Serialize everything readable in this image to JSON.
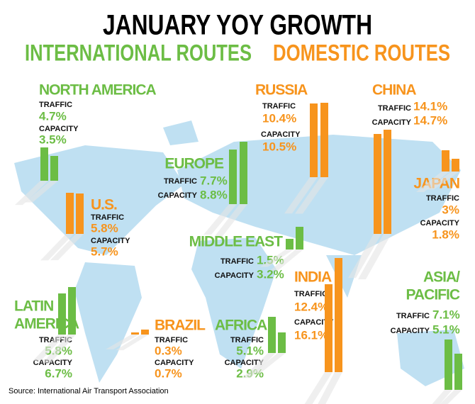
{
  "title": "JANUARY YOY GROWTH",
  "legend": {
    "international": {
      "text": "INTERNATIONAL ROUTES",
      "color": "#6cbd45"
    },
    "domestic": {
      "text": "DOMESTIC ROUTES",
      "color": "#f7941d"
    }
  },
  "metrics": {
    "traffic": "TRAFFIC",
    "capacity": "CAPACITY"
  },
  "regions": [
    {
      "name": [
        "NORTH AMERICA"
      ],
      "group": "international",
      "traffic": 4.7,
      "traffic_label": "4.7%",
      "capacity": 3.5,
      "capacity_label": "3.5%"
    },
    {
      "name": [
        "U.S."
      ],
      "group": "domestic",
      "traffic": 5.8,
      "traffic_label": "5.8%",
      "capacity": 5.7,
      "capacity_label": "5.7%"
    },
    {
      "name": [
        "EUROPE"
      ],
      "group": "international",
      "traffic": 7.7,
      "traffic_label": "7.7%",
      "capacity": 8.8,
      "capacity_label": "8.8%"
    },
    {
      "name": [
        "RUSSIA"
      ],
      "group": "domestic",
      "traffic": 10.4,
      "traffic_label": "10.4%",
      "capacity": 10.5,
      "capacity_label": "10.5%"
    },
    {
      "name": [
        "CHINA"
      ],
      "group": "domestic",
      "traffic": 14.1,
      "traffic_label": "14.1%",
      "capacity": 14.7,
      "capacity_label": "14.7%"
    },
    {
      "name": [
        "JAPAN"
      ],
      "group": "domestic",
      "traffic": 3,
      "traffic_label": "3%",
      "capacity": 1.8,
      "capacity_label": "1.8%"
    },
    {
      "name": [
        "MIDDLE EAST"
      ],
      "group": "international",
      "traffic": 1.5,
      "traffic_label": "1.5%",
      "capacity": 3.2,
      "capacity_label": "3.2%"
    },
    {
      "name": [
        "INDIA"
      ],
      "group": "domestic",
      "traffic": 12.4,
      "traffic_label": "12.4%",
      "capacity": 16.1,
      "capacity_label": "16.1%"
    },
    {
      "name": [
        "ASIA/",
        "PACIFIC"
      ],
      "group": "international",
      "traffic": 7.1,
      "traffic_label": "7.1%",
      "capacity": 5.1,
      "capacity_label": "5.1%"
    },
    {
      "name": [
        "LATIN",
        "AMERICA"
      ],
      "group": "international",
      "traffic": 5.8,
      "traffic_label": "5.8%",
      "capacity": 6.7,
      "capacity_label": "6.7%"
    },
    {
      "name": [
        "BRAZIL"
      ],
      "group": "domestic",
      "traffic": 0.3,
      "traffic_label": "0.3%",
      "capacity": 0.7,
      "capacity_label": "0.7%"
    },
    {
      "name": [
        "AFRICA"
      ],
      "group": "international",
      "traffic": 5.1,
      "traffic_label": "5.1%",
      "capacity": 2.9,
      "capacity_label": "2.9%"
    }
  ],
  "source": "Source: International Air Transport Association"
}
